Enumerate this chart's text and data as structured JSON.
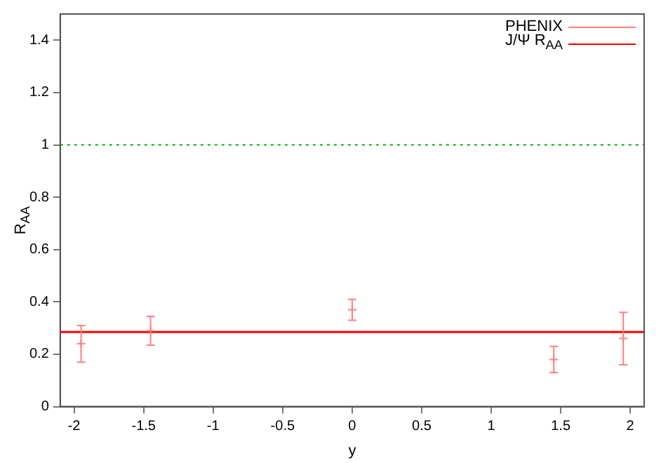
{
  "chart_data": {
    "type": "scatter",
    "xlabel": "y",
    "ylabel": "R$_{AA}$",
    "xlim": [
      -2.1,
      2.1
    ],
    "xticks": [
      -2,
      -1.5,
      -1,
      -0.5,
      0,
      0.5,
      1,
      1.5,
      2
    ],
    "ylim": [
      0,
      1.5
    ],
    "yticks": [
      0,
      0.2,
      0.4,
      0.6,
      0.8,
      1,
      1.2,
      1.4
    ],
    "grid": false,
    "legend": "top right",
    "series": [
      {
        "name": "PHENIX",
        "type": "scatter",
        "color": "#ff8080",
        "x": [
          -1.95,
          -1.45,
          0,
          1.45,
          1.95
        ],
        "values": [
          0.24,
          0.29,
          0.37,
          0.18,
          0.26
        ],
        "marker": "cross",
        "errors": [
          [
            0.17,
            0.31
          ],
          [
            0.235,
            0.345
          ],
          [
            0.33,
            0.41
          ],
          [
            0.13,
            0.23
          ],
          [
            0.16,
            0.36
          ]
        ]
      },
      {
        "name": "J/Ψ R$_{AA}$",
        "type": "line",
        "color": "#ff0000",
        "x": [
          -2.1,
          2.1
        ],
        "values": [
          0.285,
          0.285
        ],
        "marker": "none"
      }
    ],
    "ref_lines": [
      {
        "axis": "y",
        "value": 1,
        "color": "#00b000",
        "line_style": "dotted"
      }
    ]
  }
}
